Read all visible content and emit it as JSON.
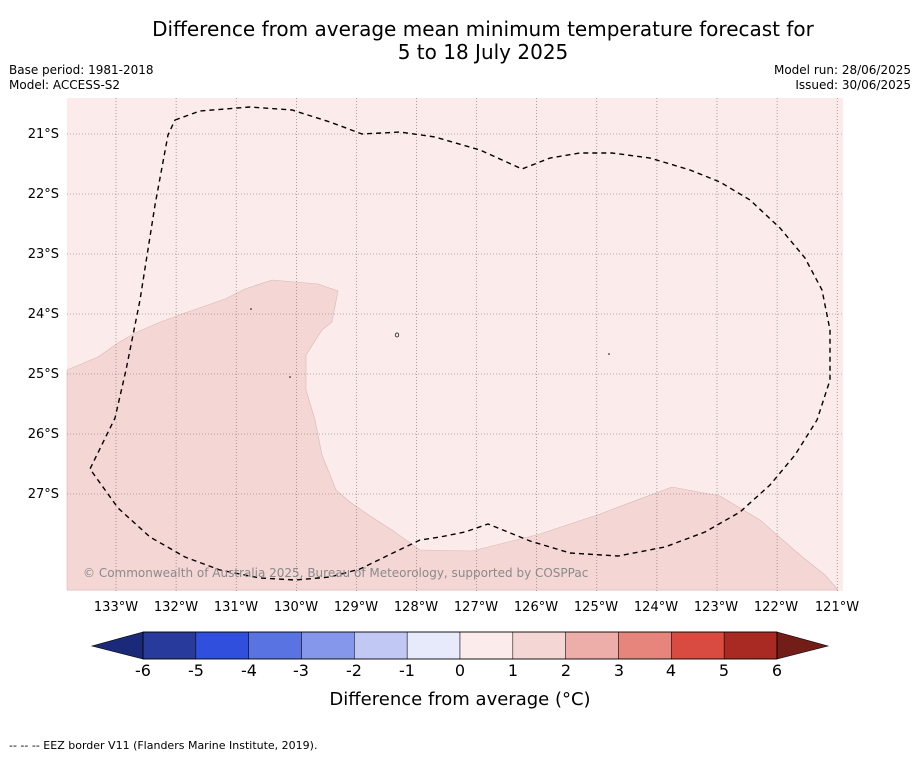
{
  "header": {
    "title_line1": "Difference from average mean minimum temperature forecast for",
    "title_line2": "5 to 18 July 2025",
    "base_period": "Base period: 1981-2018",
    "model": "Model: ACCESS-S2",
    "model_run": "Model run: 28/06/2025",
    "issued": "Issued: 30/06/2025"
  },
  "map": {
    "lon_labels": [
      "133°W",
      "132°W",
      "131°W",
      "130°W",
      "129°W",
      "128°W",
      "127°W",
      "126°W",
      "125°W",
      "124°W",
      "123°W",
      "122°W",
      "121°W"
    ],
    "lat_labels": [
      "21°S",
      "22°S",
      "23°S",
      "24°S",
      "25°S",
      "26°S",
      "27°S"
    ],
    "copyright": "© Commonwealth of Australia 2025, Bureau of Meteorology, supported by COSPPac",
    "colors": {
      "bin_0_1": "#fbeceb",
      "bin_1_2": "#f4d6d5",
      "graticule": "#7a6a6a",
      "eez_border": "#000000"
    }
  },
  "colorbar": {
    "tick_labels": [
      "-6",
      "-5",
      "-4",
      "-3",
      "-2",
      "-1",
      "0",
      "1",
      "2",
      "3",
      "4",
      "5",
      "6"
    ],
    "label": "Difference from average (°C)",
    "colors": [
      "#293a9d",
      "#2f4fdc",
      "#5a73e3",
      "#8497ea",
      "#c1c8f4",
      "#e6eafb",
      "#fbeceb",
      "#f4d6d5",
      "#edada8",
      "#e7857d",
      "#d94a40",
      "#a92a23"
    ],
    "extend_low": "#1b2a78",
    "extend_high": "#731d18"
  },
  "footnote": "--  --  -- EEZ border V11 (Flanders Marine Institute, 2019)."
}
